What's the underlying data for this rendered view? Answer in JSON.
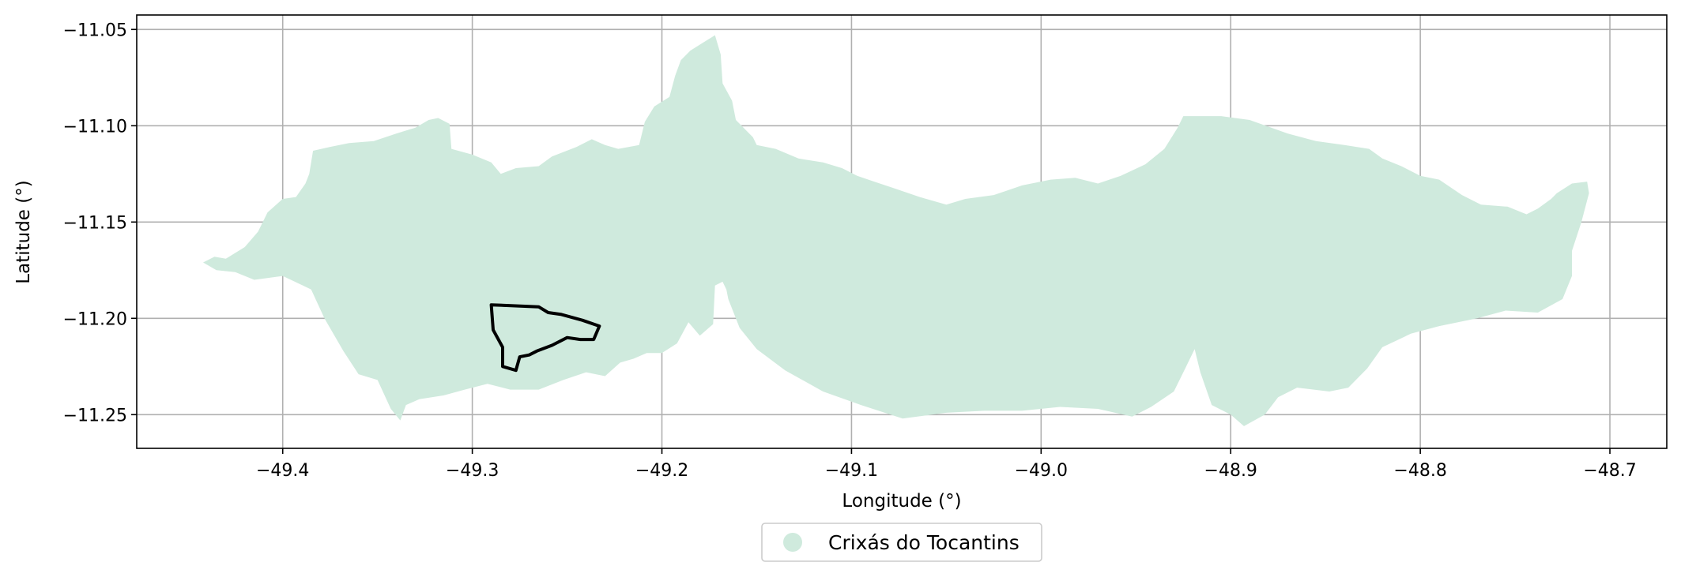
{
  "chart_data": {
    "type": "map",
    "xlabel": "Longitude (°)",
    "ylabel": "Latitude (°)",
    "xlim": [
      -49.477,
      -48.67
    ],
    "ylim": [
      -11.2675,
      -11.0425
    ],
    "grid": true,
    "xticks": [
      -49.4,
      -49.3,
      -49.2,
      -49.1,
      -49.0,
      -48.9,
      -48.8,
      -48.7
    ],
    "xtick_labels": [
      "−49.4",
      "−49.3",
      "−49.2",
      "−49.1",
      "−49.0",
      "−48.9",
      "−48.8",
      "−48.7"
    ],
    "yticks": [
      -11.05,
      -11.1,
      -11.15,
      -11.2,
      -11.25
    ],
    "ytick_labels": [
      "−11.05",
      "−11.10",
      "−11.15",
      "−11.20",
      "−11.25"
    ],
    "legend": {
      "placement": "bottom-center",
      "entries": [
        {
          "label": "Crixás do Tocantins",
          "color": "#cfeadd"
        }
      ]
    },
    "region": {
      "name": "Crixás do Tocantins",
      "fill_color": "#cfeadd",
      "outline": [
        [
          -49.442,
          -11.171
        ],
        [
          -49.436,
          -11.168
        ],
        [
          -49.43,
          -11.169
        ],
        [
          -49.42,
          -11.163
        ],
        [
          -49.413,
          -11.155
        ],
        [
          -49.408,
          -11.145
        ],
        [
          -49.4,
          -11.138
        ],
        [
          -49.393,
          -11.137
        ],
        [
          -49.388,
          -11.13
        ],
        [
          -49.386,
          -11.125
        ],
        [
          -49.384,
          -11.113
        ],
        [
          -49.375,
          -11.111
        ],
        [
          -49.365,
          -11.109
        ],
        [
          -49.352,
          -11.108
        ],
        [
          -49.34,
          -11.104
        ],
        [
          -49.33,
          -11.101
        ],
        [
          -49.323,
          -11.097
        ],
        [
          -49.318,
          -11.096
        ],
        [
          -49.312,
          -11.099
        ],
        [
          -49.311,
          -11.112
        ],
        [
          -49.3,
          -11.115
        ],
        [
          -49.29,
          -11.119
        ],
        [
          -49.285,
          -11.125
        ],
        [
          -49.277,
          -11.122
        ],
        [
          -49.265,
          -11.121
        ],
        [
          -49.258,
          -11.116
        ],
        [
          -49.245,
          -11.111
        ],
        [
          -49.237,
          -11.107
        ],
        [
          -49.23,
          -11.11
        ],
        [
          -49.223,
          -11.112
        ],
        [
          -49.212,
          -11.11
        ],
        [
          -49.209,
          -11.098
        ],
        [
          -49.204,
          -11.09
        ],
        [
          -49.196,
          -11.085
        ],
        [
          -49.193,
          -11.074
        ],
        [
          -49.19,
          -11.066
        ],
        [
          -49.185,
          -11.061
        ],
        [
          -49.172,
          -11.053
        ],
        [
          -49.169,
          -11.063
        ],
        [
          -49.168,
          -11.078
        ],
        [
          -49.163,
          -11.087
        ],
        [
          -49.161,
          -11.097
        ],
        [
          -49.152,
          -11.106
        ],
        [
          -49.15,
          -11.11
        ],
        [
          -49.14,
          -11.112
        ],
        [
          -49.128,
          -11.117
        ],
        [
          -49.115,
          -11.119
        ],
        [
          -49.105,
          -11.122
        ],
        [
          -49.097,
          -11.126
        ],
        [
          -49.088,
          -11.129
        ],
        [
          -49.076,
          -11.133
        ],
        [
          -49.064,
          -11.137
        ],
        [
          -49.05,
          -11.141
        ],
        [
          -49.04,
          -11.138
        ],
        [
          -49.025,
          -11.136
        ],
        [
          -49.01,
          -11.131
        ],
        [
          -48.995,
          -11.128
        ],
        [
          -48.982,
          -11.127
        ],
        [
          -48.97,
          -11.13
        ],
        [
          -48.958,
          -11.126
        ],
        [
          -48.945,
          -11.12
        ],
        [
          -48.935,
          -11.112
        ],
        [
          -48.928,
          -11.101
        ],
        [
          -48.925,
          -11.095
        ],
        [
          -48.905,
          -11.095
        ],
        [
          -48.89,
          -11.097
        ],
        [
          -48.87,
          -11.104
        ],
        [
          -48.855,
          -11.108
        ],
        [
          -48.84,
          -11.11
        ],
        [
          -48.827,
          -11.112
        ],
        [
          -48.82,
          -11.117
        ],
        [
          -48.81,
          -11.121
        ],
        [
          -48.8,
          -11.126
        ],
        [
          -48.79,
          -11.128
        ],
        [
          -48.778,
          -11.136
        ],
        [
          -48.768,
          -11.141
        ],
        [
          -48.754,
          -11.142
        ],
        [
          -48.744,
          -11.146
        ],
        [
          -48.738,
          -11.143
        ],
        [
          -48.731,
          -11.138
        ],
        [
          -48.728,
          -11.135
        ],
        [
          -48.72,
          -11.13
        ],
        [
          -48.712,
          -11.129
        ],
        [
          -48.711,
          -11.135
        ],
        [
          -48.715,
          -11.15
        ],
        [
          -48.72,
          -11.165
        ],
        [
          -48.72,
          -11.178
        ],
        [
          -48.725,
          -11.19
        ],
        [
          -48.738,
          -11.197
        ],
        [
          -48.755,
          -11.196
        ],
        [
          -48.77,
          -11.2
        ],
        [
          -48.79,
          -11.204
        ],
        [
          -48.805,
          -11.208
        ],
        [
          -48.82,
          -11.215
        ],
        [
          -48.828,
          -11.226
        ],
        [
          -48.838,
          -11.236
        ],
        [
          -48.848,
          -11.238
        ],
        [
          -48.865,
          -11.236
        ],
        [
          -48.875,
          -11.241
        ],
        [
          -48.882,
          -11.25
        ],
        [
          -48.893,
          -11.256
        ],
        [
          -48.9,
          -11.25
        ],
        [
          -48.91,
          -11.245
        ],
        [
          -48.916,
          -11.228
        ],
        [
          -48.919,
          -11.216
        ],
        [
          -48.924,
          -11.226
        ],
        [
          -48.93,
          -11.238
        ],
        [
          -48.942,
          -11.246
        ],
        [
          -48.952,
          -11.251
        ],
        [
          -48.97,
          -11.247
        ],
        [
          -48.99,
          -11.246
        ],
        [
          -49.01,
          -11.248
        ],
        [
          -49.03,
          -11.248
        ],
        [
          -49.05,
          -11.249
        ],
        [
          -49.073,
          -11.252
        ],
        [
          -49.095,
          -11.245
        ],
        [
          -49.115,
          -11.238
        ],
        [
          -49.135,
          -11.227
        ],
        [
          -49.15,
          -11.216
        ],
        [
          -49.159,
          -11.205
        ],
        [
          -49.165,
          -11.19
        ],
        [
          -49.166,
          -11.185
        ],
        [
          -49.168,
          -11.181
        ],
        [
          -49.172,
          -11.183
        ],
        [
          -49.173,
          -11.203
        ],
        [
          -49.18,
          -11.209
        ],
        [
          -49.186,
          -11.202
        ],
        [
          -49.192,
          -11.213
        ],
        [
          -49.2,
          -11.218
        ],
        [
          -49.208,
          -11.218
        ],
        [
          -49.215,
          -11.221
        ],
        [
          -49.222,
          -11.223
        ],
        [
          -49.23,
          -11.23
        ],
        [
          -49.24,
          -11.228
        ],
        [
          -49.252,
          -11.232
        ],
        [
          -49.265,
          -11.237
        ],
        [
          -49.28,
          -11.237
        ],
        [
          -49.292,
          -11.234
        ],
        [
          -49.304,
          -11.237
        ],
        [
          -49.315,
          -11.24
        ],
        [
          -49.328,
          -11.242
        ],
        [
          -49.335,
          -11.245
        ],
        [
          -49.338,
          -11.253
        ],
        [
          -49.343,
          -11.247
        ],
        [
          -49.35,
          -11.232
        ],
        [
          -49.36,
          -11.229
        ],
        [
          -49.368,
          -11.217
        ],
        [
          -49.378,
          -11.2
        ],
        [
          -49.385,
          -11.185
        ],
        [
          -49.4,
          -11.178
        ],
        [
          -49.415,
          -11.18
        ],
        [
          -49.425,
          -11.176
        ],
        [
          -49.435,
          -11.175
        ]
      ]
    },
    "highlight": {
      "color": "#000000",
      "outline": [
        [
          -49.29,
          -11.193
        ],
        [
          -49.265,
          -11.194
        ],
        [
          -49.26,
          -11.197
        ],
        [
          -49.253,
          -11.198
        ],
        [
          -49.242,
          -11.201
        ],
        [
          -49.233,
          -11.204
        ],
        [
          -49.236,
          -11.211
        ],
        [
          -49.243,
          -11.211
        ],
        [
          -49.25,
          -11.21
        ],
        [
          -49.258,
          -11.214
        ],
        [
          -49.266,
          -11.217
        ],
        [
          -49.27,
          -11.219
        ],
        [
          -49.275,
          -11.22
        ],
        [
          -49.277,
          -11.227
        ],
        [
          -49.284,
          -11.225
        ],
        [
          -49.284,
          -11.215
        ],
        [
          -49.289,
          -11.206
        ]
      ]
    }
  }
}
